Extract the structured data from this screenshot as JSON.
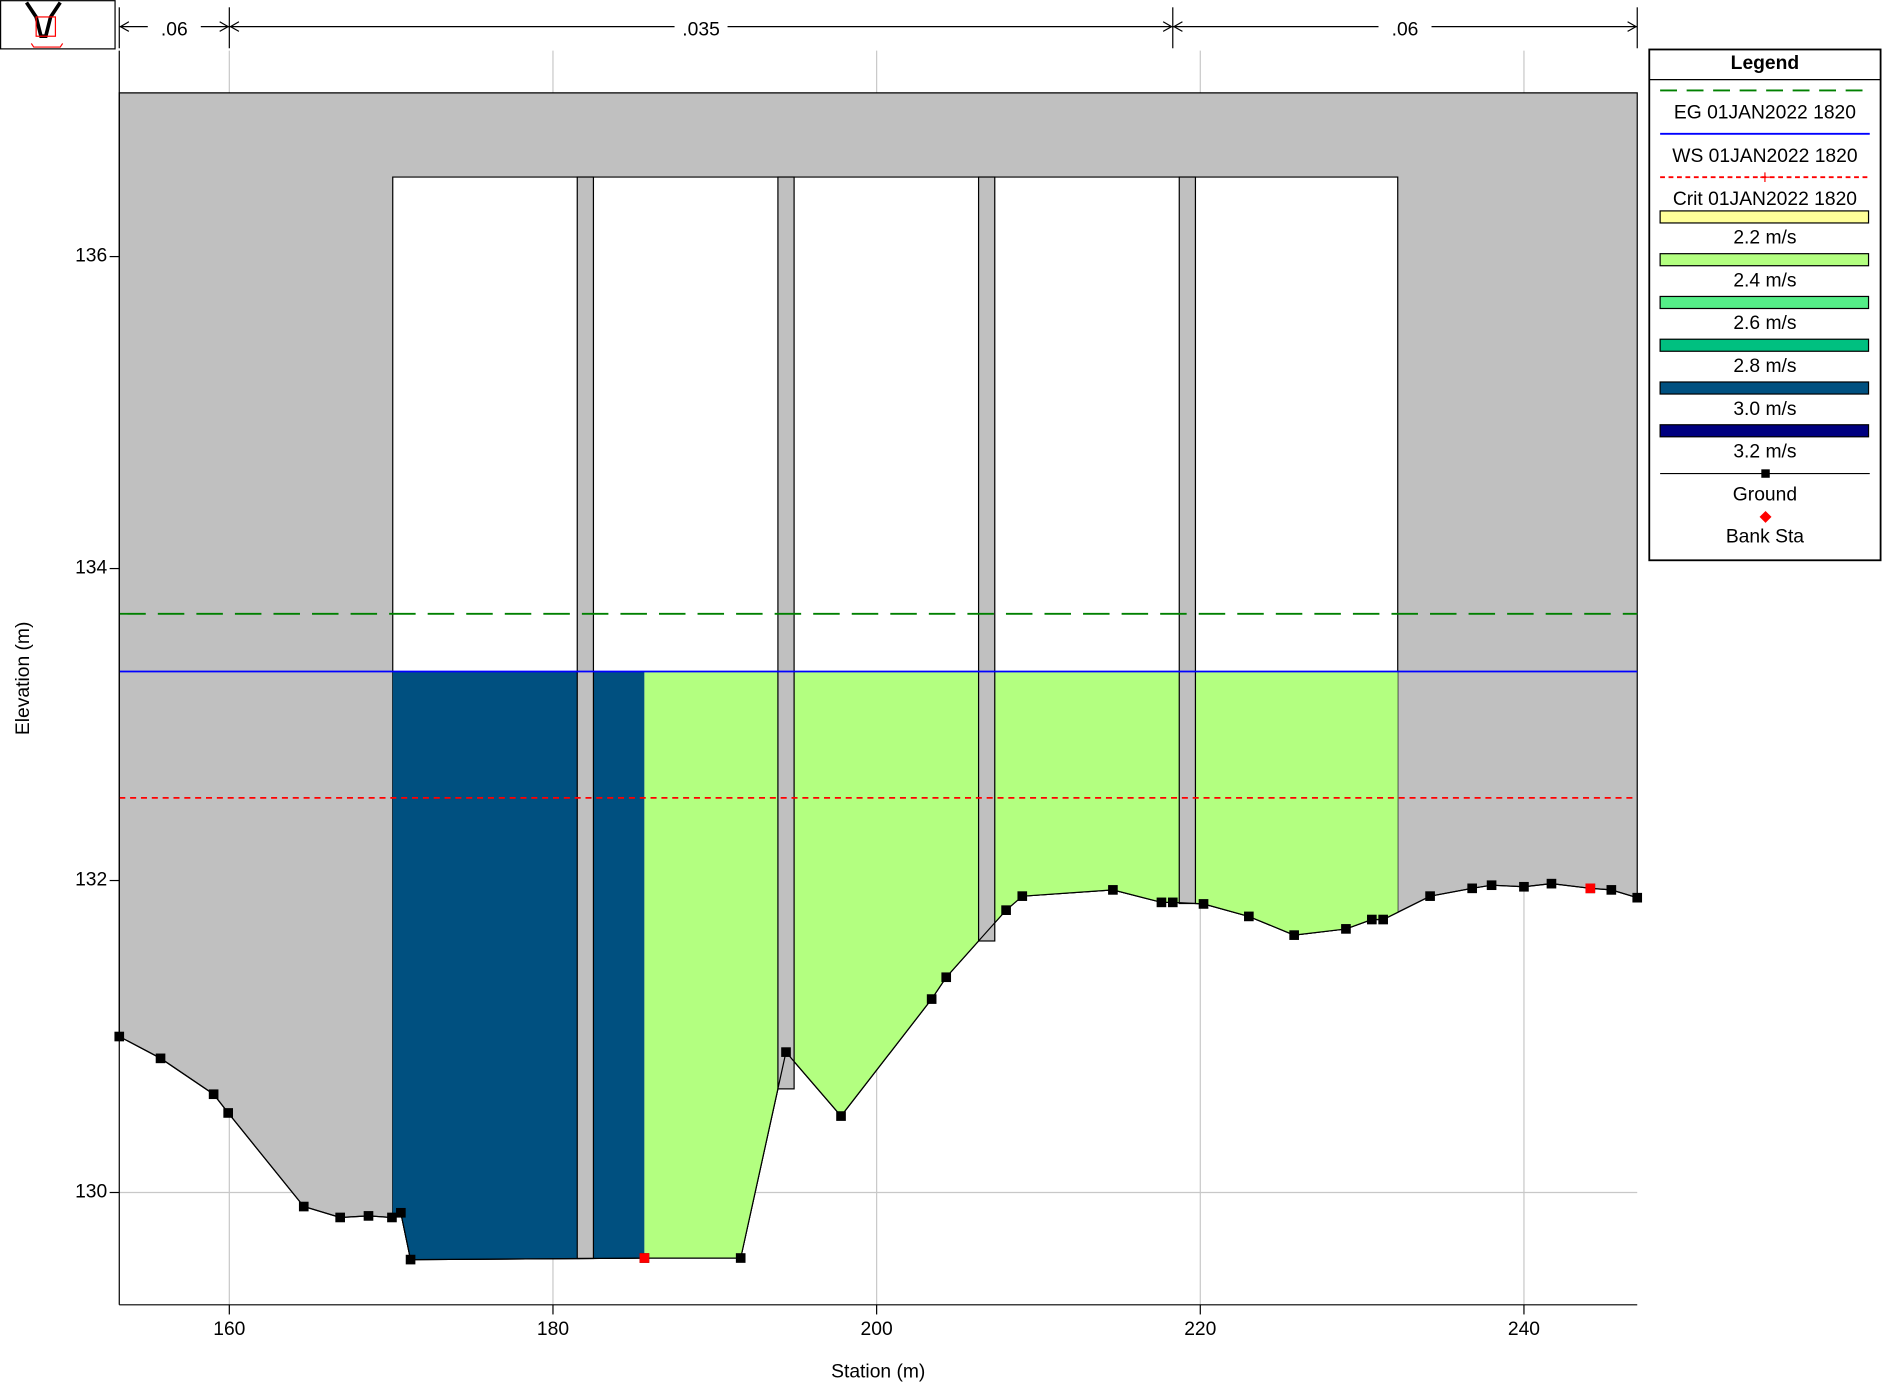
{
  "chart_data": {
    "type": "cross-section",
    "x_label": "Station (m)",
    "y_label": "Elevation (m)",
    "xlim": [
      153.2,
      247.0
    ],
    "ylim": [
      129.28,
      137.32
    ],
    "xticks": [
      160,
      180,
      200,
      220,
      240
    ],
    "yticks": [
      130,
      132,
      134,
      136
    ],
    "grid": true,
    "mannings_n": [
      {
        "value": 0.06,
        "label": ".06"
      },
      {
        "value": 0.035,
        "label": ".035"
      },
      {
        "value": 0.06,
        "label": ".06"
      }
    ],
    "n_breaks": [
      160,
      218.3
    ],
    "deck": {
      "top_chord": 137.05,
      "low_chord": 136.51,
      "left": 170.1,
      "right": 232.2,
      "color": "#c0c0c0"
    },
    "piers": [
      [
        181.5,
        182.5
      ],
      [
        193.9,
        194.9
      ],
      [
        206.3,
        207.3
      ],
      [
        218.7,
        219.7
      ]
    ],
    "ground": {
      "name": "Ground",
      "color": "#000000",
      "x": [
        153.2,
        155.75,
        159.03,
        159.93,
        164.6,
        166.85,
        168.6,
        170.05,
        170.6,
        171.2,
        185.65,
        191.6,
        194.4,
        197.8,
        203.4,
        204.3,
        208.0,
        209.0,
        214.6,
        217.6,
        218.3,
        220.2,
        223.0,
        225.8,
        229.0,
        230.6,
        231.3,
        234.2,
        236.8,
        238.0,
        240.0,
        241.7,
        244.1,
        245.4,
        247.0
      ],
      "y": [
        131.0,
        130.86,
        130.63,
        130.51,
        129.91,
        129.84,
        129.85,
        129.84,
        129.87,
        129.57,
        129.58,
        129.58,
        130.9,
        130.49,
        131.24,
        131.38,
        131.81,
        131.9,
        131.94,
        131.86,
        131.86,
        131.85,
        131.77,
        131.65,
        131.69,
        131.75,
        131.75,
        131.9,
        131.95,
        131.97,
        131.96,
        131.98,
        131.95,
        131.94,
        131.89
      ]
    },
    "bank_stations": {
      "name": "Bank Sta",
      "color": "#ff0000",
      "x": [
        185.65,
        244.1
      ],
      "y": [
        129.58,
        131.95
      ]
    },
    "lines": [
      {
        "name": "EG 01JAN2022 1820",
        "color": "#008000",
        "style": "dashed",
        "value": 133.71
      },
      {
        "name": "WS 01JAN2022 1820",
        "color": "#0000ff",
        "style": "solid",
        "value": 133.34
      },
      {
        "name": "Crit 01JAN2022 1820",
        "color": "#ff0000",
        "style": "dotted",
        "value": 132.53
      }
    ],
    "flow_areas": [
      {
        "from": 170.1,
        "to": 185.65,
        "color": "#005080"
      },
      {
        "from": 185.65,
        "to": 232.2,
        "color": "#b3ff80"
      }
    ],
    "legend_title": "Legend",
    "velocity_legend": [
      {
        "label": "2.2 m/s",
        "color": "#ffff99"
      },
      {
        "label": "2.4 m/s",
        "color": "#b3ff80"
      },
      {
        "label": "2.6 m/s",
        "color": "#55ee88"
      },
      {
        "label": "2.8 m/s",
        "color": "#00c080"
      },
      {
        "label": "3.0 m/s",
        "color": "#005080"
      },
      {
        "label": "3.2 m/s",
        "color": "#000080"
      }
    ]
  }
}
